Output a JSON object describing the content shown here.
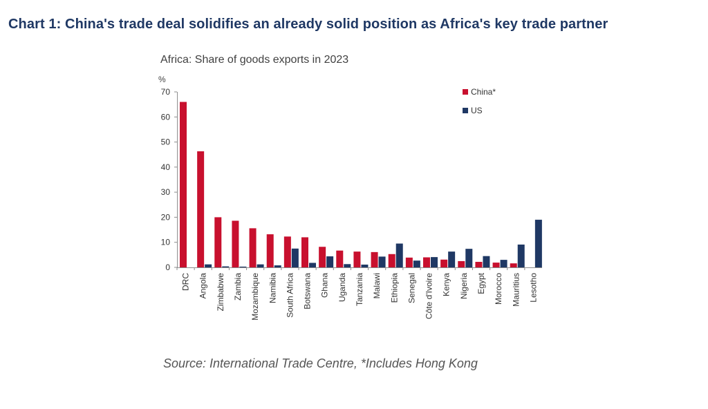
{
  "heading": "Chart 1: China's trade deal solidifies an already solid position as Africa's key trade partner",
  "source": "Source: International Trade Centre, *Includes Hong Kong",
  "chart_data": {
    "type": "bar",
    "title": "Africa: Share of goods exports in 2023",
    "ylabel": "%",
    "ylim": [
      0,
      70
    ],
    "yticks": [
      0,
      10,
      20,
      30,
      40,
      50,
      60,
      70
    ],
    "grid": false,
    "legend_position": "top-right",
    "categories": [
      "DRC",
      "Angola",
      "Zimbabwe",
      "Zambia",
      "Mozambique",
      "Namibia",
      "South Africa",
      "Botswana",
      "Ghana",
      "Uganda",
      "Tanzania",
      "Malawi",
      "Ethiopia",
      "Senegal",
      "Côte d'Ivoire",
      "Kenya",
      "Nigeria",
      "Egypt",
      "Morocco",
      "Mauritius",
      "Lesotho"
    ],
    "series": [
      {
        "name": "China*",
        "color": "#c8102e",
        "values": [
          66,
          46.3,
          20,
          18.6,
          15.6,
          13.2,
          12.3,
          12,
          8.2,
          6.7,
          6.3,
          6.1,
          5.3,
          3.9,
          4,
          3.1,
          2.5,
          2.2,
          1.9,
          1.6,
          0
        ]
      },
      {
        "name": "US",
        "color": "#1f3864",
        "values": [
          0,
          1.2,
          0.4,
          0.3,
          1.2,
          0.8,
          7.5,
          1.8,
          4.4,
          1.3,
          1.1,
          4.3,
          9.5,
          2.7,
          4.1,
          6.3,
          7.4,
          4.5,
          3,
          9.1,
          19
        ]
      }
    ]
  }
}
